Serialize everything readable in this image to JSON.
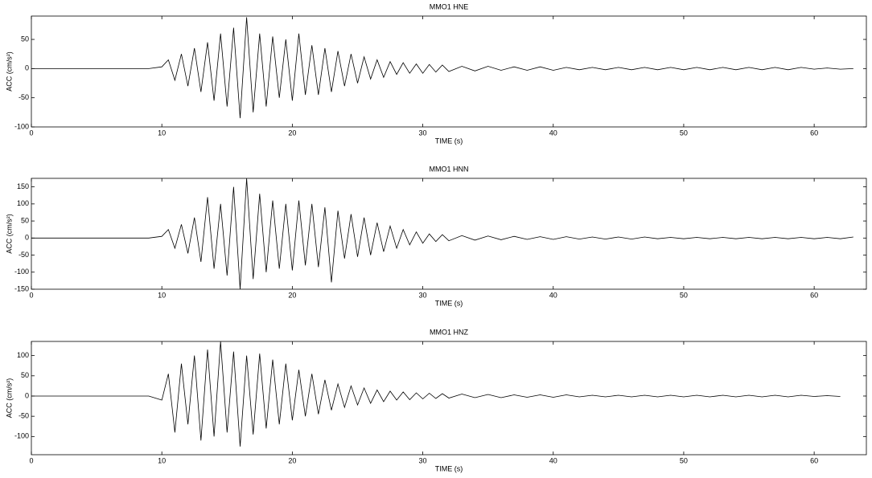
{
  "chart_data": [
    {
      "type": "line",
      "title": "MMO1 HNE",
      "x_label": "TIME (s)",
      "y_label": "ACC (cm/s²)",
      "color": "#000000",
      "grid": false,
      "xlim": [
        0,
        64
      ],
      "xticks": [
        0,
        10,
        20,
        30,
        40,
        50,
        60
      ],
      "ylim": [
        -100,
        90
      ],
      "yticks": [
        -100,
        -50,
        0,
        50
      ],
      "x": [
        0,
        2,
        4,
        6,
        8,
        9,
        10,
        10.5,
        11,
        11.5,
        12,
        12.5,
        13,
        13.5,
        14,
        14.5,
        15,
        15.5,
        16,
        16.5,
        17,
        17.5,
        18,
        18.5,
        19,
        19.5,
        20,
        20.5,
        21,
        21.5,
        22,
        22.5,
        23,
        23.5,
        24,
        24.5,
        25,
        25.5,
        26,
        26.5,
        27,
        27.5,
        28,
        28.5,
        29,
        29.5,
        30,
        30.5,
        31,
        31.5,
        32,
        33,
        34,
        35,
        36,
        37,
        38,
        39,
        40,
        41,
        42,
        43,
        44,
        45,
        46,
        47,
        48,
        49,
        50,
        51,
        52,
        53,
        54,
        55,
        56,
        57,
        58,
        59,
        60,
        61,
        62,
        63
      ],
      "values": [
        0,
        0,
        0,
        0,
        0,
        0,
        3,
        15,
        -20,
        25,
        -30,
        35,
        -40,
        45,
        -55,
        60,
        -65,
        70,
        -85,
        88,
        -75,
        60,
        -65,
        55,
        -50,
        50,
        -55,
        60,
        -45,
        40,
        -45,
        35,
        -40,
        30,
        -30,
        25,
        -25,
        20,
        -18,
        15,
        -15,
        12,
        -10,
        10,
        -8,
        8,
        -8,
        7,
        -6,
        6,
        -5,
        4,
        -4,
        4,
        -3,
        3,
        -3,
        3,
        -3,
        2,
        -2,
        2,
        -2,
        2,
        -2,
        2,
        -2,
        2,
        -2,
        2,
        -2,
        2,
        -2,
        2,
        -2,
        2,
        -2,
        2,
        -1,
        1,
        -1,
        0
      ]
    },
    {
      "type": "line",
      "title": "MMO1 HNN",
      "x_label": "TIME (s)",
      "y_label": "ACC (cm/s²)",
      "color": "#000000",
      "grid": false,
      "xlim": [
        0,
        64
      ],
      "xticks": [
        0,
        10,
        20,
        30,
        40,
        50,
        60
      ],
      "ylim": [
        -150,
        175
      ],
      "yticks": [
        -150,
        -100,
        -50,
        0,
        50,
        100,
        150
      ],
      "x": [
        0,
        2,
        4,
        6,
        8,
        9,
        10,
        10.5,
        11,
        11.5,
        12,
        12.5,
        13,
        13.5,
        14,
        14.5,
        15,
        15.5,
        16,
        16.5,
        17,
        17.5,
        18,
        18.5,
        19,
        19.5,
        20,
        20.5,
        21,
        21.5,
        22,
        22.5,
        23,
        23.5,
        24,
        24.5,
        25,
        25.5,
        26,
        26.5,
        27,
        27.5,
        28,
        28.5,
        29,
        29.5,
        30,
        30.5,
        31,
        31.5,
        32,
        33,
        34,
        35,
        36,
        37,
        38,
        39,
        40,
        41,
        42,
        43,
        44,
        45,
        46,
        47,
        48,
        49,
        50,
        51,
        52,
        53,
        54,
        55,
        56,
        57,
        58,
        59,
        60,
        61,
        62,
        63
      ],
      "values": [
        0,
        0,
        0,
        0,
        0,
        0,
        5,
        25,
        -30,
        40,
        -45,
        60,
        -70,
        120,
        -90,
        100,
        -110,
        150,
        -150,
        175,
        -120,
        130,
        -100,
        110,
        -90,
        100,
        -95,
        110,
        -80,
        100,
        -85,
        90,
        -130,
        80,
        -60,
        70,
        -55,
        60,
        -50,
        45,
        -40,
        35,
        -30,
        25,
        -20,
        18,
        -15,
        12,
        -10,
        10,
        -8,
        7,
        -6,
        6,
        -5,
        5,
        -4,
        4,
        -4,
        4,
        -3,
        3,
        -3,
        3,
        -3,
        3,
        -2,
        2,
        -2,
        2,
        -2,
        2,
        -2,
        2,
        -2,
        2,
        -2,
        2,
        -2,
        2,
        -2,
        3
      ]
    },
    {
      "type": "line",
      "title": "MMO1 HNZ",
      "x_label": "TIME (s)",
      "y_label": "ACC (cm/s²)",
      "color": "#000000",
      "grid": false,
      "xlim": [
        0,
        64
      ],
      "xticks": [
        0,
        10,
        20,
        30,
        40,
        50,
        60
      ],
      "ylim": [
        -145,
        135
      ],
      "yticks": [
        -100,
        -50,
        0,
        50,
        100
      ],
      "x": [
        0,
        2,
        4,
        6,
        8,
        9,
        10,
        10.5,
        11,
        11.5,
        12,
        12.5,
        13,
        13.5,
        14,
        14.5,
        15,
        15.5,
        16,
        16.5,
        17,
        17.5,
        18,
        18.5,
        19,
        19.5,
        20,
        20.5,
        21,
        21.5,
        22,
        22.5,
        23,
        23.5,
        24,
        24.5,
        25,
        25.5,
        26,
        26.5,
        27,
        27.5,
        28,
        28.5,
        29,
        29.5,
        30,
        30.5,
        31,
        31.5,
        32,
        33,
        34,
        35,
        36,
        37,
        38,
        39,
        40,
        41,
        42,
        43,
        44,
        45,
        46,
        47,
        48,
        49,
        50,
        51,
        52,
        53,
        54,
        55,
        56,
        57,
        58,
        59,
        60,
        61,
        62
      ],
      "values": [
        0,
        0,
        0,
        0,
        0,
        0,
        -10,
        55,
        -90,
        80,
        -70,
        100,
        -110,
        115,
        -100,
        135,
        -90,
        110,
        -125,
        100,
        -95,
        105,
        -80,
        90,
        -70,
        80,
        -60,
        65,
        -50,
        55,
        -45,
        40,
        -35,
        30,
        -28,
        25,
        -22,
        20,
        -18,
        15,
        -14,
        12,
        -10,
        10,
        -9,
        8,
        -7,
        7,
        -6,
        6,
        -5,
        5,
        -4,
        4,
        -4,
        3,
        -3,
        3,
        -3,
        3,
        -2,
        2,
        -2,
        2,
        -2,
        2,
        -2,
        2,
        -2,
        2,
        -2,
        2,
        -2,
        2,
        -2,
        2,
        -2,
        2,
        -1,
        1,
        -1
      ]
    }
  ]
}
